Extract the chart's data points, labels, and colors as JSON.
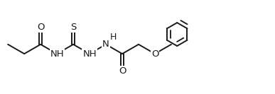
{
  "bg_color": "#ffffff",
  "line_color": "#1a1a1a",
  "line_width": 1.4,
  "font_size_atoms": 9.5,
  "fig_width": 3.87,
  "fig_height": 1.33,
  "dpi": 100,
  "xlim": [
    0,
    10.5
  ],
  "ylim": [
    0,
    3.5
  ]
}
